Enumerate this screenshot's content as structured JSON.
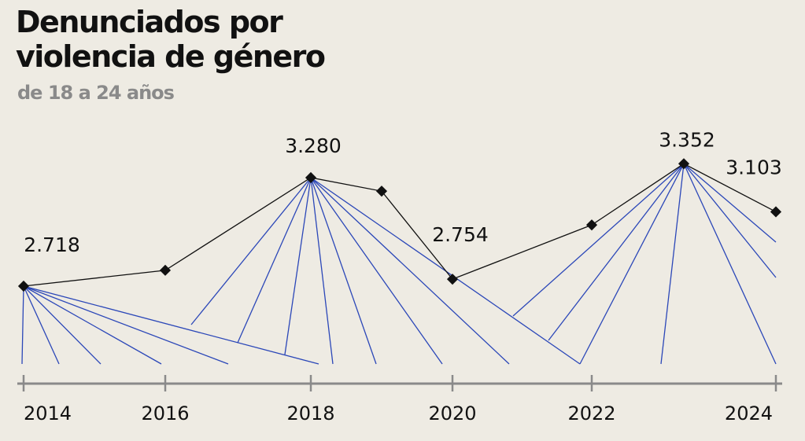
{
  "chart_data": {
    "type": "line",
    "title": "Denunciados por violencia de género",
    "subtitle": "de 18 a 24 años",
    "xlabel": "",
    "ylabel": "",
    "x": [
      2014,
      2016,
      2018,
      2019,
      2020,
      2022,
      2023,
      2024
    ],
    "values": [
      2718,
      2800,
      3280,
      3210,
      2754,
      3035,
      3352,
      3103
    ],
    "data_labels": [
      "2.718",
      "",
      "3.280",
      "",
      "2.754",
      "",
      "3.352",
      "3.103"
    ],
    "x_ticks": [
      "2014",
      "2016",
      "2018",
      "2020",
      "2022",
      "2024"
    ],
    "grid": false,
    "colors": {
      "line": "#111111",
      "fan": "#2b47b8",
      "axis": "#8a8a8a",
      "background": "#eeebe3"
    }
  }
}
